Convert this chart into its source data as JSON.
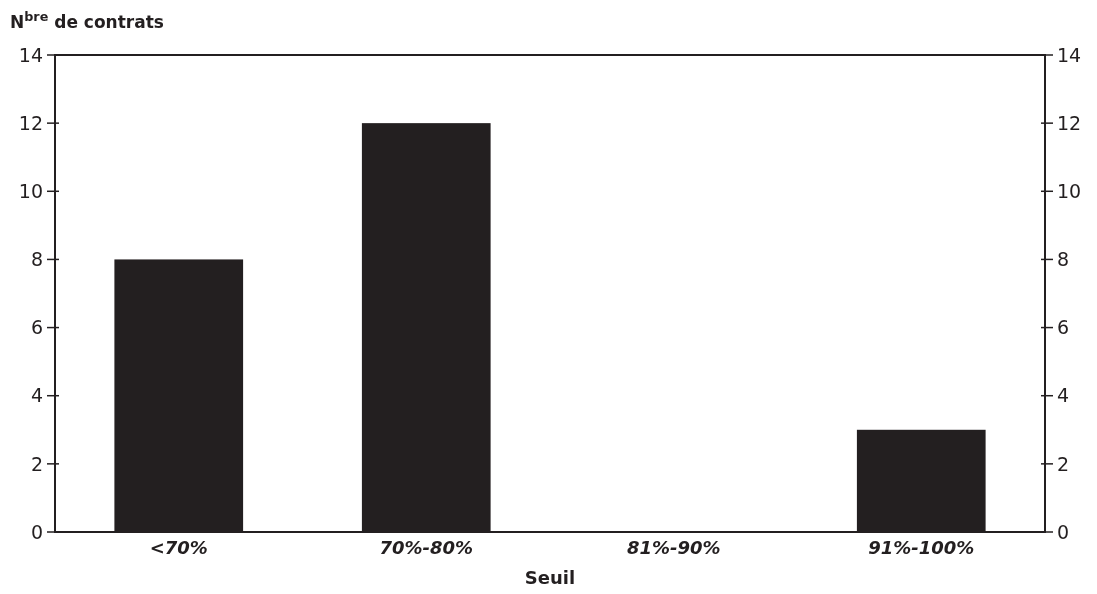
{
  "chart_data": {
    "type": "bar",
    "ylabel": "N$^{bre}$ de contrats",
    "xlabel": "Seuil",
    "categories": [
      "<70%",
      "70%-80%",
      "81%-90%",
      "91%-100%"
    ],
    "values": [
      8,
      12,
      0,
      3
    ],
    "color": "#231f20",
    "ylim": [
      0,
      14
    ],
    "yticks": [
      0,
      2,
      4,
      6,
      8,
      10,
      12,
      14
    ],
    "y2lim": [
      0,
      14
    ],
    "y2ticks": [
      0,
      2,
      4,
      6,
      8,
      10,
      12,
      14
    ],
    "grid": false
  }
}
